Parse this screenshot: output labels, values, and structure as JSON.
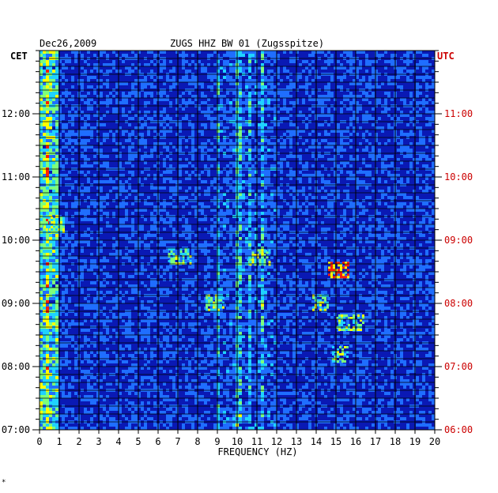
{
  "header": {
    "date": "Dec26,2009",
    "station": "ZUGS HHZ BW 01 (Zugsspitze)"
  },
  "left_timezone": "CET",
  "right_timezone": "UTC",
  "corner_mark": "*",
  "colors": {
    "background": "#0a19b4",
    "left_axis_text": "#000000",
    "right_axis_text": "#cc0000"
  },
  "chart_data": {
    "type": "heatmap",
    "title": "ZUGS HHZ BW 01 (Zugsspitze)",
    "date": "Dec26,2009",
    "xlabel": "FREQUENCY (HZ)",
    "x_ticks": [
      "0",
      "1",
      "2",
      "3",
      "4",
      "5",
      "6",
      "7",
      "8",
      "9",
      "10",
      "11",
      "12",
      "13",
      "14",
      "15",
      "16",
      "17",
      "18",
      "19",
      "20"
    ],
    "xlim": [
      0,
      20
    ],
    "y_left_label": "CET",
    "y_left_ticks": [
      "07:00",
      "08:00",
      "09:00",
      "10:00",
      "11:00",
      "12:00"
    ],
    "y_right_label": "UTC",
    "y_right_ticks": [
      "06:00",
      "07:00",
      "08:00",
      "09:00",
      "10:00",
      "11:00"
    ],
    "ylim_cet_hours": [
      7.0,
      13.0
    ],
    "colormap": [
      "#0a14a0",
      "#1230d8",
      "#1f6eff",
      "#1fd2ff",
      "#7cff7c",
      "#ffff00",
      "#ff2000"
    ],
    "persistent_lines_hz": [
      0.3,
      9.0,
      10.0,
      10.6,
      11.2
    ],
    "events": [
      {
        "time_cet": "09:32",
        "freq_hz": [
          14.6,
          15.6
        ],
        "intensity": "high"
      },
      {
        "time_cet": "08:42",
        "freq_hz": [
          15.0,
          16.4
        ],
        "intensity": "medium"
      },
      {
        "time_cet": "08:12",
        "freq_hz": [
          14.8,
          15.6
        ],
        "intensity": "medium"
      },
      {
        "time_cet": "09:45",
        "freq_hz": [
          6.5,
          7.6
        ],
        "intensity": "medium"
      },
      {
        "time_cet": "09:44",
        "freq_hz": [
          10.5,
          11.6
        ],
        "intensity": "medium"
      },
      {
        "time_cet": "09:01",
        "freq_hz": [
          8.4,
          9.3
        ],
        "intensity": "medium"
      },
      {
        "time_cet": "09:01",
        "freq_hz": [
          13.8,
          14.6
        ],
        "intensity": "medium"
      },
      {
        "time_cet": "10:15",
        "freq_hz": [
          0.2,
          1.2
        ],
        "intensity": "medium"
      }
    ]
  }
}
